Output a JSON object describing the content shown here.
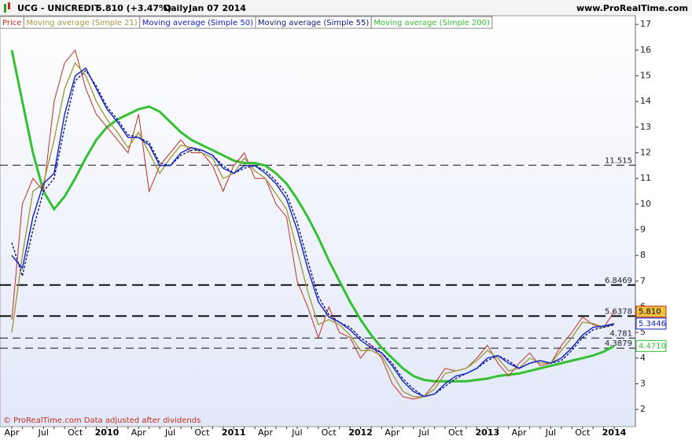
{
  "header": {
    "symbol": "UCG - UNICREDIT",
    "quote": "5.810 (+3.47%)",
    "period": "Daily",
    "date": "Jan 07 2014",
    "site": "www.ProRealTime.com"
  },
  "footer": "© ProRealTime.com Data adjusted after dividends",
  "chart_data": {
    "type": "line",
    "categories": [
      "Apr",
      null,
      null,
      "Jul",
      null,
      null,
      "Oct",
      null,
      null,
      "2010",
      null,
      null,
      "Apr",
      null,
      null,
      "Jul",
      null,
      null,
      "Oct",
      null,
      null,
      "2011",
      null,
      null,
      "Apr",
      null,
      null,
      "Jul",
      null,
      null,
      "Oct",
      null,
      null,
      "2012",
      null,
      null,
      "Apr",
      null,
      null,
      "Jul",
      null,
      null,
      "Oct",
      null,
      null,
      "2013",
      null,
      null,
      "Apr",
      null,
      null,
      "Jul",
      null,
      null,
      "Oct",
      null,
      null,
      "2014"
    ],
    "series": [
      {
        "name": "Price",
        "color": "#c03020",
        "values": [
          5.5,
          10,
          11,
          10.5,
          14,
          15.5,
          16,
          14.5,
          13.5,
          13,
          12.5,
          12,
          13.5,
          10.5,
          11.5,
          12,
          12.5,
          12,
          12,
          11.5,
          10.5,
          11.5,
          12,
          11,
          11,
          10,
          9.5,
          7,
          6,
          4.8,
          6,
          5,
          4.8,
          4,
          4.5,
          4,
          3,
          2.5,
          2.4,
          2.5,
          3,
          3.6,
          3.5,
          3.6,
          4,
          4.5,
          3.8,
          3.3,
          3.8,
          4.2,
          3.7,
          3.8,
          4.5,
          5,
          5.6,
          5.3,
          5.2,
          5.81
        ]
      },
      {
        "name": "Moving average (Simple 21)",
        "color": "#a09a40",
        "values": [
          5,
          8,
          10.5,
          10.8,
          12.5,
          14.5,
          15.5,
          15,
          14,
          13.3,
          12.8,
          12.2,
          12.8,
          12,
          11.2,
          11.8,
          12.3,
          12.2,
          12,
          11.8,
          11,
          11.2,
          11.8,
          11.3,
          11,
          10.4,
          9.8,
          8.2,
          6.6,
          5.3,
          5.5,
          5.3,
          4.9,
          4.3,
          4.3,
          4.1,
          3.4,
          2.7,
          2.5,
          2.5,
          2.8,
          3.4,
          3.5,
          3.6,
          3.9,
          4.3,
          4,
          3.5,
          3.6,
          4,
          3.8,
          3.8,
          4.3,
          4.8,
          5.4,
          5.35,
          5.2,
          5.3
        ]
      },
      {
        "name": "Moving average (Simple 50)",
        "color": "#1020c0",
        "values": [
          8,
          7.5,
          9.5,
          10.8,
          11.2,
          13.5,
          15,
          15.3,
          14.5,
          13.7,
          13.2,
          12.6,
          12.6,
          12.3,
          11.5,
          11.5,
          12,
          12.2,
          12.1,
          11.9,
          11.4,
          11.2,
          11.5,
          11.5,
          11.2,
          10.8,
          10.2,
          9,
          7.5,
          6.2,
          5.6,
          5.4,
          5.1,
          4.7,
          4.4,
          4.2,
          3.7,
          3.1,
          2.7,
          2.5,
          2.6,
          3,
          3.3,
          3.4,
          3.6,
          4,
          4.1,
          3.8,
          3.6,
          3.8,
          3.9,
          3.8,
          4,
          4.4,
          4.9,
          5.2,
          5.25,
          5.3446
        ]
      },
      {
        "name": "Moving average (Simple 55)",
        "color": "#101880",
        "dashed": true,
        "values": [
          8.5,
          7.2,
          9,
          10.5,
          11,
          13,
          14.8,
          15.2,
          14.6,
          13.8,
          13.3,
          12.7,
          12.6,
          12.4,
          11.6,
          11.5,
          11.9,
          12.1,
          12.1,
          11.9,
          11.5,
          11.2,
          11.4,
          11.5,
          11.3,
          10.9,
          10.4,
          9.3,
          7.8,
          6.4,
          5.7,
          5.4,
          5.2,
          4.8,
          4.5,
          4.2,
          3.8,
          3.2,
          2.8,
          2.5,
          2.6,
          2.9,
          3.2,
          3.4,
          3.6,
          3.9,
          4.1,
          3.9,
          3.6,
          3.8,
          3.9,
          3.8,
          3.9,
          4.3,
          4.8,
          5.1,
          5.2,
          5.3
        ]
      },
      {
        "name": "Moving average (Simple 200)",
        "color": "#33c033",
        "values": [
          16,
          14,
          12,
          10.5,
          9.8,
          10.3,
          11,
          11.8,
          12.5,
          13,
          13.3,
          13.5,
          13.7,
          13.8,
          13.6,
          13.2,
          12.8,
          12.5,
          12.3,
          12.1,
          11.9,
          11.7,
          11.6,
          11.6,
          11.5,
          11.2,
          10.8,
          10.2,
          9.5,
          8.7,
          7.8,
          7,
          6.2,
          5.5,
          4.9,
          4.4,
          4,
          3.6,
          3.3,
          3.15,
          3.1,
          3.1,
          3.1,
          3.1,
          3.15,
          3.2,
          3.3,
          3.35,
          3.4,
          3.5,
          3.6,
          3.7,
          3.8,
          3.9,
          4,
          4.1,
          4.25,
          4.471
        ]
      }
    ],
    "hlines": [
      {
        "value": 11.515,
        "heavy": false
      },
      {
        "value": 6.8469,
        "heavy": true
      },
      {
        "value": 5.6378,
        "heavy": true
      },
      {
        "value": 4.781,
        "heavy": false
      },
      {
        "value": 4.3879,
        "heavy": false
      }
    ],
    "price_tags": [
      {
        "value": 5.81,
        "label": "5.810",
        "color": "#f0c040"
      },
      {
        "value": 5.3446,
        "label": "5.3446",
        "color": "#ffffff"
      },
      {
        "value": 4.471,
        "label": "4.4710",
        "color": "#ffffff"
      }
    ],
    "ylim": [
      1.33,
      17.31
    ],
    "yticks": [
      2,
      3,
      4,
      5,
      6,
      7,
      8,
      9,
      10,
      11,
      12,
      13,
      14,
      15,
      16,
      17
    ]
  }
}
